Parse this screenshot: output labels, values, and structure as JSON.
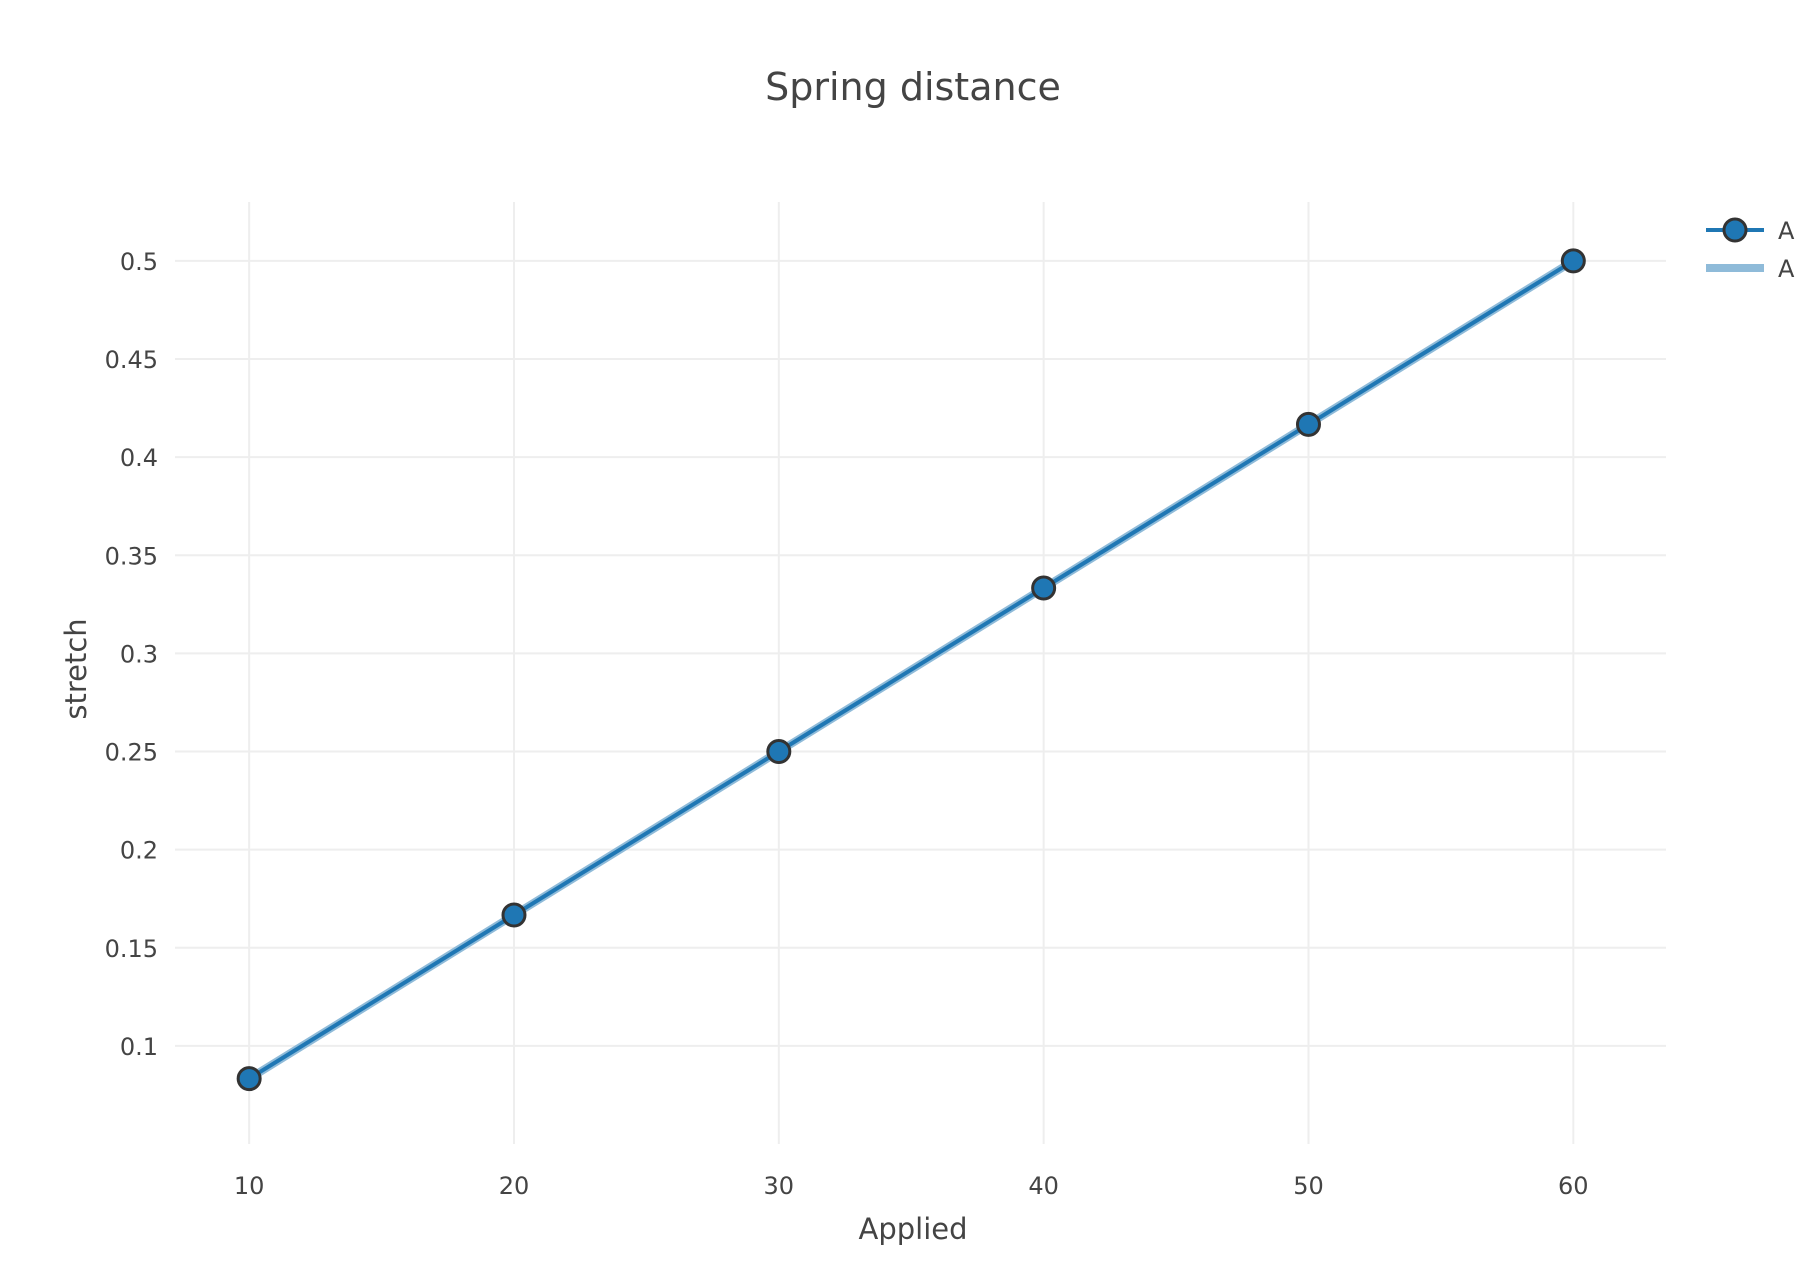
{
  "chart_data": {
    "type": "line",
    "title": "Spring distance",
    "xlabel": "Applied",
    "ylabel": "stretch",
    "xlim": [
      7.2,
      63.5
    ],
    "ylim": [
      0.05,
      0.53
    ],
    "xticks": [
      10,
      20,
      30,
      40,
      50,
      60
    ],
    "xtick_labels": [
      "10",
      "20",
      "30",
      "40",
      "50",
      "60"
    ],
    "yticks": [
      0.1,
      0.15,
      0.2,
      0.25,
      0.3,
      0.35,
      0.4,
      0.45,
      0.5
    ],
    "ytick_labels": [
      "0.1",
      "0.15",
      "0.2",
      "0.25",
      "0.3",
      "0.35",
      "0.4",
      "0.45",
      "0.5"
    ],
    "grid": true,
    "legend_position": "top-right",
    "series": [
      {
        "name": "A",
        "mode": "lines+markers",
        "color": "#1f77b4",
        "marker_outline": "#333333",
        "x": [
          10,
          20,
          30,
          40,
          50,
          60
        ],
        "y": [
          0.0833,
          0.1667,
          0.25,
          0.3333,
          0.4167,
          0.5
        ]
      },
      {
        "name": "A",
        "mode": "lines",
        "color": "#8fbbd9",
        "x": [
          10,
          20,
          30,
          40,
          50,
          60
        ],
        "y": [
          0.0833,
          0.1667,
          0.25,
          0.3333,
          0.4167,
          0.5
        ]
      }
    ]
  }
}
